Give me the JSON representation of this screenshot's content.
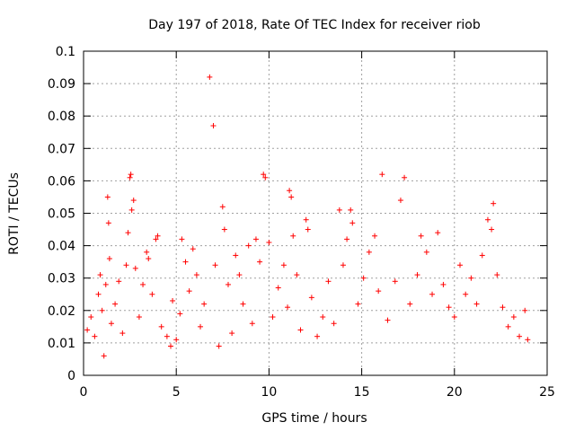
{
  "chart_data": {
    "type": "scatter",
    "title": "Day 197 of 2018, Rate Of TEC Index for receiver riob",
    "xlabel": "GPS time / hours",
    "ylabel": "ROTI / TECUs",
    "xlim": [
      0,
      25
    ],
    "ylim": [
      0,
      0.1
    ],
    "xticks": [
      0,
      5,
      10,
      15,
      20,
      25
    ],
    "yticks": [
      0,
      0.01,
      0.02,
      0.03,
      0.04,
      0.05,
      0.06,
      0.07,
      0.08,
      0.09,
      0.1
    ],
    "grid": true,
    "marker": "+",
    "color": "#ff0000",
    "points": [
      [
        0.2,
        0.014
      ],
      [
        0.4,
        0.018
      ],
      [
        0.6,
        0.012
      ],
      [
        0.8,
        0.025
      ],
      [
        0.9,
        0.031
      ],
      [
        1.0,
        0.02
      ],
      [
        1.1,
        0.006
      ],
      [
        1.2,
        0.028
      ],
      [
        1.3,
        0.055
      ],
      [
        1.35,
        0.047
      ],
      [
        1.4,
        0.036
      ],
      [
        1.5,
        0.016
      ],
      [
        1.7,
        0.022
      ],
      [
        1.9,
        0.029
      ],
      [
        2.1,
        0.013
      ],
      [
        2.3,
        0.034
      ],
      [
        2.4,
        0.044
      ],
      [
        2.5,
        0.061
      ],
      [
        2.55,
        0.062
      ],
      [
        2.6,
        0.051
      ],
      [
        2.7,
        0.054
      ],
      [
        2.8,
        0.033
      ],
      [
        3.0,
        0.018
      ],
      [
        3.2,
        0.028
      ],
      [
        3.4,
        0.038
      ],
      [
        3.5,
        0.036
      ],
      [
        3.7,
        0.025
      ],
      [
        3.9,
        0.042
      ],
      [
        4.0,
        0.043
      ],
      [
        4.2,
        0.015
      ],
      [
        4.5,
        0.012
      ],
      [
        4.7,
        0.009
      ],
      [
        4.8,
        0.023
      ],
      [
        5.0,
        0.011
      ],
      [
        5.2,
        0.019
      ],
      [
        5.3,
        0.042
      ],
      [
        5.5,
        0.035
      ],
      [
        5.7,
        0.026
      ],
      [
        5.9,
        0.039
      ],
      [
        6.1,
        0.031
      ],
      [
        6.3,
        0.015
      ],
      [
        6.5,
        0.022
      ],
      [
        6.8,
        0.092
      ],
      [
        7.0,
        0.077
      ],
      [
        7.1,
        0.034
      ],
      [
        7.3,
        0.009
      ],
      [
        7.5,
        0.052
      ],
      [
        7.6,
        0.045
      ],
      [
        7.8,
        0.028
      ],
      [
        8.0,
        0.013
      ],
      [
        8.2,
        0.037
      ],
      [
        8.4,
        0.031
      ],
      [
        8.6,
        0.022
      ],
      [
        8.9,
        0.04
      ],
      [
        9.1,
        0.016
      ],
      [
        9.3,
        0.042
      ],
      [
        9.5,
        0.035
      ],
      [
        9.7,
        0.062
      ],
      [
        9.8,
        0.061
      ],
      [
        10.0,
        0.041
      ],
      [
        10.2,
        0.018
      ],
      [
        10.5,
        0.027
      ],
      [
        10.8,
        0.034
      ],
      [
        11.0,
        0.021
      ],
      [
        11.1,
        0.057
      ],
      [
        11.2,
        0.055
      ],
      [
        11.3,
        0.043
      ],
      [
        11.5,
        0.031
      ],
      [
        11.7,
        0.014
      ],
      [
        12.0,
        0.048
      ],
      [
        12.1,
        0.045
      ],
      [
        12.3,
        0.024
      ],
      [
        12.6,
        0.012
      ],
      [
        12.9,
        0.018
      ],
      [
        13.2,
        0.029
      ],
      [
        13.5,
        0.016
      ],
      [
        13.8,
        0.051
      ],
      [
        14.0,
        0.034
      ],
      [
        14.2,
        0.042
      ],
      [
        14.4,
        0.051
      ],
      [
        14.5,
        0.047
      ],
      [
        14.8,
        0.022
      ],
      [
        15.1,
        0.03
      ],
      [
        15.4,
        0.038
      ],
      [
        15.7,
        0.043
      ],
      [
        15.9,
        0.026
      ],
      [
        16.1,
        0.062
      ],
      [
        16.4,
        0.017
      ],
      [
        16.8,
        0.029
      ],
      [
        17.1,
        0.054
      ],
      [
        17.3,
        0.061
      ],
      [
        17.6,
        0.022
      ],
      [
        18.0,
        0.031
      ],
      [
        18.2,
        0.043
      ],
      [
        18.5,
        0.038
      ],
      [
        18.8,
        0.025
      ],
      [
        19.1,
        0.044
      ],
      [
        19.4,
        0.028
      ],
      [
        19.7,
        0.021
      ],
      [
        20.0,
        0.018
      ],
      [
        20.3,
        0.034
      ],
      [
        20.6,
        0.025
      ],
      [
        20.9,
        0.03
      ],
      [
        21.2,
        0.022
      ],
      [
        21.5,
        0.037
      ],
      [
        21.8,
        0.048
      ],
      [
        22.0,
        0.045
      ],
      [
        22.1,
        0.053
      ],
      [
        22.3,
        0.031
      ],
      [
        22.6,
        0.021
      ],
      [
        22.9,
        0.015
      ],
      [
        23.2,
        0.018
      ],
      [
        23.5,
        0.012
      ],
      [
        23.8,
        0.02
      ],
      [
        23.95,
        0.011
      ]
    ]
  }
}
